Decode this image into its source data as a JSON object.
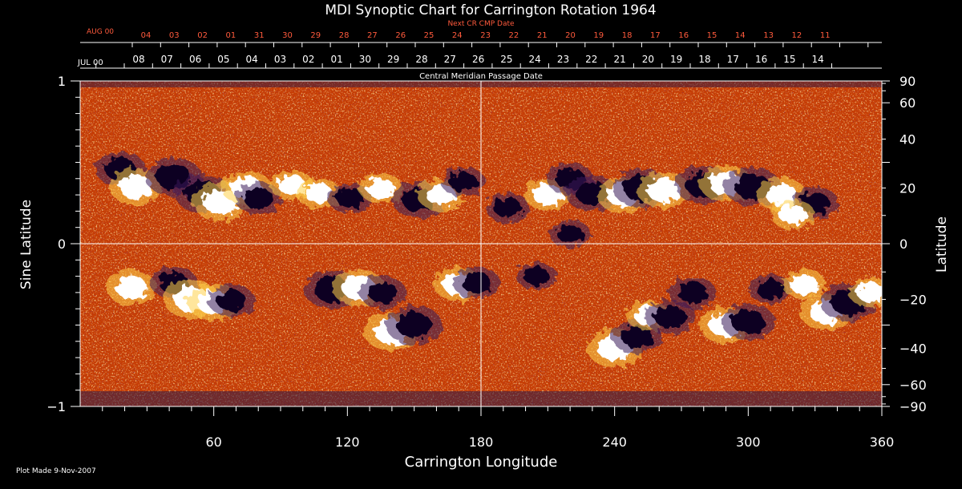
{
  "chart_data": {
    "type": "heatmap",
    "title": "MDI Synoptic Chart for Carrington Rotation 1964",
    "xlabel": "Carrington Longitude",
    "ylabel": "Sine Latitude",
    "ylabel_right": "Latitude",
    "xlim": [
      0,
      360
    ],
    "ylim": [
      -1,
      1
    ],
    "x_ticks": [
      60,
      120,
      180,
      240,
      300,
      360
    ],
    "y_ticks": [
      -1,
      0,
      1
    ],
    "right_ticks": [
      90,
      60,
      40,
      20,
      0,
      -20,
      -40,
      -60,
      -90
    ],
    "top_axis_title": "Central Meridian Passage Date",
    "top_month_label": "JUL 00",
    "top_day_labels": [
      "08",
      "07",
      "06",
      "05",
      "04",
      "03",
      "02",
      "01",
      "30",
      "29",
      "28",
      "27",
      "26",
      "25",
      "24",
      "23",
      "22",
      "21",
      "20",
      "19",
      "18",
      "17",
      "16",
      "15",
      "14"
    ],
    "next_axis_title": "Next CR CMP Date",
    "next_month_label": "AUG 00",
    "next_day_labels": [
      "04",
      "03",
      "02",
      "01",
      "31",
      "30",
      "29",
      "28",
      "27",
      "26",
      "25",
      "24",
      "23",
      "22",
      "21",
      "20",
      "19",
      "18",
      "17",
      "16",
      "15",
      "14",
      "13",
      "12",
      "11"
    ],
    "grid_lines": {
      "longitude": 180,
      "sine_latitude": 0
    },
    "colors": {
      "background": "#c63d05",
      "positive": "#ffffff",
      "negative": "#100020",
      "next_axis": "#ff5a3c",
      "axis": "#ffffff"
    },
    "active_regions": [
      {
        "lon": 18,
        "sinlat": 0.46,
        "polarity": "negative",
        "strength": 0.8
      },
      {
        "lon": 25,
        "sinlat": 0.35,
        "polarity": "positive",
        "strength": 0.9
      },
      {
        "lon": 42,
        "sinlat": 0.41,
        "polarity": "negative",
        "strength": 1.0
      },
      {
        "lon": 55,
        "sinlat": 0.31,
        "polarity": "negative",
        "strength": 1.0
      },
      {
        "lon": 63,
        "sinlat": 0.26,
        "polarity": "positive",
        "strength": 1.0
      },
      {
        "lon": 75,
        "sinlat": 0.34,
        "polarity": "positive",
        "strength": 0.8
      },
      {
        "lon": 80,
        "sinlat": 0.28,
        "polarity": "negative",
        "strength": 0.7
      },
      {
        "lon": 95,
        "sinlat": 0.36,
        "polarity": "positive",
        "strength": 0.6
      },
      {
        "lon": 107,
        "sinlat": 0.31,
        "polarity": "positive",
        "strength": 0.6
      },
      {
        "lon": 121,
        "sinlat": 0.28,
        "polarity": "negative",
        "strength": 0.6
      },
      {
        "lon": 135,
        "sinlat": 0.34,
        "polarity": "positive",
        "strength": 0.6
      },
      {
        "lon": 152,
        "sinlat": 0.27,
        "polarity": "negative",
        "strength": 0.9
      },
      {
        "lon": 162,
        "sinlat": 0.3,
        "polarity": "positive",
        "strength": 0.7
      },
      {
        "lon": 172,
        "sinlat": 0.38,
        "polarity": "negative",
        "strength": 0.6
      },
      {
        "lon": 192,
        "sinlat": 0.22,
        "polarity": "negative",
        "strength": 0.6
      },
      {
        "lon": 210,
        "sinlat": 0.3,
        "polarity": "positive",
        "strength": 0.7
      },
      {
        "lon": 220,
        "sinlat": 0.4,
        "polarity": "negative",
        "strength": 0.7
      },
      {
        "lon": 230,
        "sinlat": 0.31,
        "polarity": "negative",
        "strength": 0.9
      },
      {
        "lon": 244,
        "sinlat": 0.3,
        "polarity": "positive",
        "strength": 0.9
      },
      {
        "lon": 252,
        "sinlat": 0.34,
        "polarity": "negative",
        "strength": 1.0
      },
      {
        "lon": 262,
        "sinlat": 0.33,
        "polarity": "positive",
        "strength": 0.9
      },
      {
        "lon": 280,
        "sinlat": 0.36,
        "polarity": "negative",
        "strength": 1.0
      },
      {
        "lon": 290,
        "sinlat": 0.37,
        "polarity": "positive",
        "strength": 0.9
      },
      {
        "lon": 302,
        "sinlat": 0.35,
        "polarity": "negative",
        "strength": 1.0
      },
      {
        "lon": 315,
        "sinlat": 0.3,
        "polarity": "positive",
        "strength": 0.8
      },
      {
        "lon": 330,
        "sinlat": 0.25,
        "polarity": "negative",
        "strength": 0.7
      },
      {
        "lon": 320,
        "sinlat": 0.18,
        "polarity": "positive",
        "strength": 0.6
      },
      {
        "lon": 220,
        "sinlat": 0.06,
        "polarity": "negative",
        "strength": 0.5
      },
      {
        "lon": 23,
        "sinlat": -0.27,
        "polarity": "positive",
        "strength": 0.8
      },
      {
        "lon": 42,
        "sinlat": -0.24,
        "polarity": "negative",
        "strength": 0.7
      },
      {
        "lon": 50,
        "sinlat": -0.34,
        "polarity": "positive",
        "strength": 1.0
      },
      {
        "lon": 60,
        "sinlat": -0.36,
        "polarity": "positive",
        "strength": 0.9
      },
      {
        "lon": 68,
        "sinlat": -0.35,
        "polarity": "negative",
        "strength": 0.7
      },
      {
        "lon": 113,
        "sinlat": -0.28,
        "polarity": "negative",
        "strength": 1.0
      },
      {
        "lon": 125,
        "sinlat": -0.27,
        "polarity": "positive",
        "strength": 0.9
      },
      {
        "lon": 136,
        "sinlat": -0.3,
        "polarity": "negative",
        "strength": 0.7
      },
      {
        "lon": 140,
        "sinlat": -0.54,
        "polarity": "positive",
        "strength": 1.0
      },
      {
        "lon": 150,
        "sinlat": -0.5,
        "polarity": "negative",
        "strength": 1.0
      },
      {
        "lon": 170,
        "sinlat": -0.25,
        "polarity": "positive",
        "strength": 0.8
      },
      {
        "lon": 178,
        "sinlat": -0.24,
        "polarity": "negative",
        "strength": 0.7
      },
      {
        "lon": 205,
        "sinlat": -0.2,
        "polarity": "negative",
        "strength": 0.5
      },
      {
        "lon": 240,
        "sinlat": -0.64,
        "polarity": "positive",
        "strength": 1.0
      },
      {
        "lon": 250,
        "sinlat": -0.57,
        "polarity": "negative",
        "strength": 0.8
      },
      {
        "lon": 255,
        "sinlat": -0.44,
        "polarity": "positive",
        "strength": 0.6
      },
      {
        "lon": 265,
        "sinlat": -0.45,
        "polarity": "negative",
        "strength": 0.8
      },
      {
        "lon": 275,
        "sinlat": -0.3,
        "polarity": "negative",
        "strength": 0.7
      },
      {
        "lon": 290,
        "sinlat": -0.5,
        "polarity": "positive",
        "strength": 0.9
      },
      {
        "lon": 300,
        "sinlat": -0.48,
        "polarity": "negative",
        "strength": 0.9
      },
      {
        "lon": 310,
        "sinlat": -0.28,
        "polarity": "negative",
        "strength": 0.6
      },
      {
        "lon": 325,
        "sinlat": -0.25,
        "polarity": "positive",
        "strength": 0.6
      },
      {
        "lon": 335,
        "sinlat": -0.42,
        "polarity": "positive",
        "strength": 0.9
      },
      {
        "lon": 345,
        "sinlat": -0.36,
        "polarity": "negative",
        "strength": 1.0
      },
      {
        "lon": 355,
        "sinlat": -0.3,
        "polarity": "positive",
        "strength": 0.6
      }
    ]
  },
  "footer": {
    "plot_made": "Plot Made  9-Nov-2007"
  }
}
